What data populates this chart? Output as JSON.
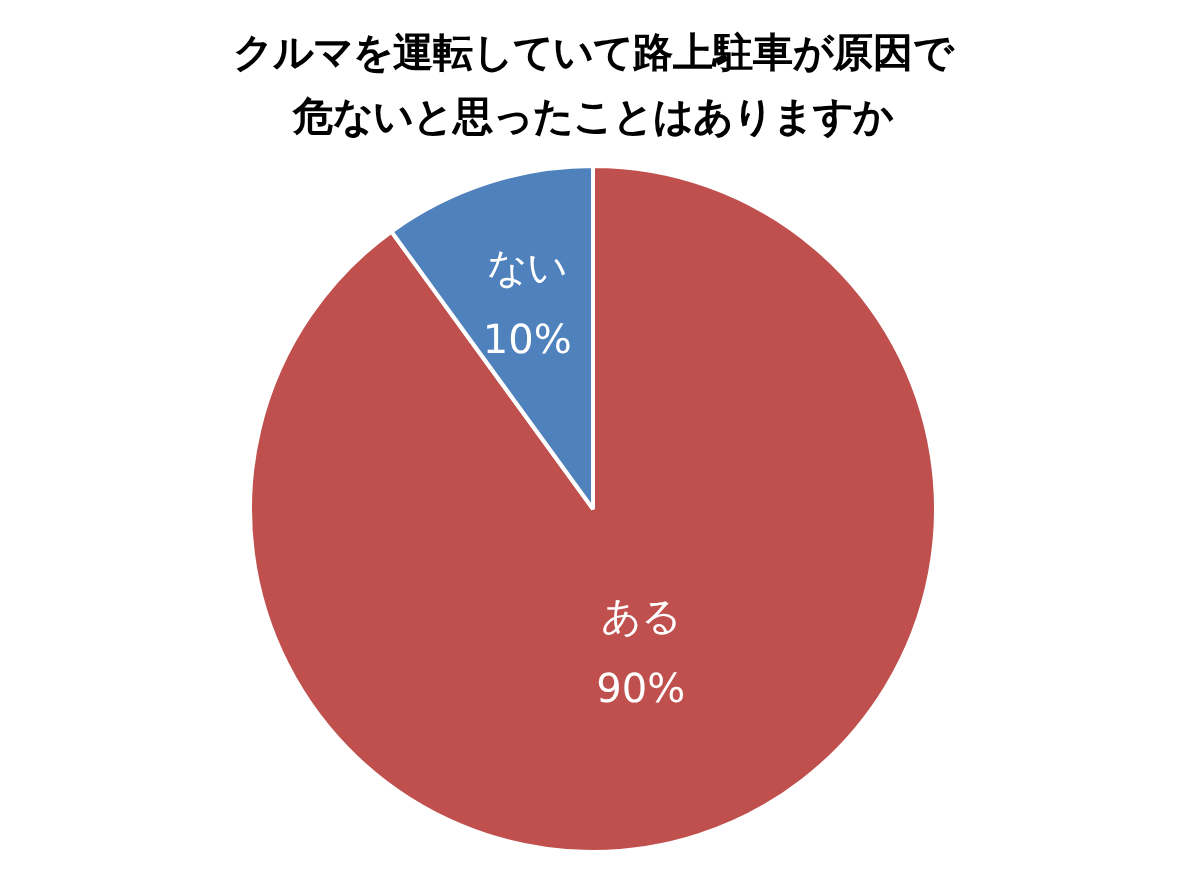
{
  "chart_data": {
    "type": "pie",
    "title": "クルマを運転していて路上駐車が原因で危ないと思ったことはありますか",
    "categories": [
      "ある",
      "ない"
    ],
    "values": [
      90,
      10
    ],
    "colors": [
      "#c0504d",
      "#4f81bd"
    ],
    "value_labels": [
      "90%",
      "10%"
    ],
    "legend": false
  }
}
